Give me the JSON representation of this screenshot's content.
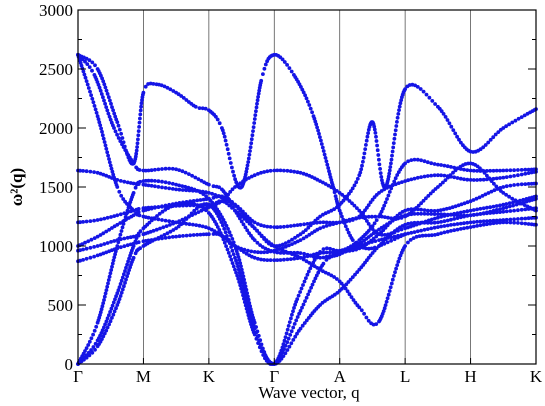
{
  "chart_data": {
    "type": "scatter",
    "ylabel": "ω²(q)",
    "xlabel": "Wave vector, q",
    "ylim": [
      0,
      3000
    ],
    "yticks": [
      0,
      500,
      1000,
      1500,
      2000,
      2500,
      3000
    ],
    "ytick_labels": [
      "0",
      "500",
      "1000",
      "1500",
      "2000",
      "2500",
      "3000"
    ],
    "x_points": [
      "Γ",
      "M",
      "K",
      "Γ",
      "A",
      "L",
      "H",
      "K"
    ],
    "grid_x": true,
    "grid_y": false,
    "series_color": "#1515e6",
    "series": [
      {
        "values": [
          [
            0,
            0
          ],
          [
            0.3,
            150
          ],
          [
            0.6,
            500
          ],
          [
            0.85,
            900
          ],
          [
            1,
            1000
          ],
          [
            1.5,
            1150
          ],
          [
            2,
            1350
          ],
          [
            2.4,
            900
          ],
          [
            2.7,
            300
          ],
          [
            3,
            0
          ],
          [
            3.4,
            300
          ],
          [
            3.7,
            500
          ],
          [
            4,
            620
          ],
          [
            4.3,
            800
          ],
          [
            4.6,
            1000
          ],
          [
            5,
            1180
          ],
          [
            5.5,
            1200
          ],
          [
            6,
            1260
          ],
          [
            6.5,
            1290
          ],
          [
            7,
            1320
          ]
        ]
      },
      {
        "values": [
          [
            0,
            0
          ],
          [
            0.3,
            200
          ],
          [
            0.6,
            600
          ],
          [
            0.85,
            1000
          ],
          [
            1,
            1150
          ],
          [
            1.5,
            1350
          ],
          [
            2,
            1280
          ],
          [
            2.4,
            800
          ],
          [
            2.7,
            250
          ],
          [
            3,
            0
          ],
          [
            3.4,
            450
          ],
          [
            3.75,
            850
          ],
          [
            4,
            930
          ],
          [
            4.3,
            1000
          ],
          [
            4.6,
            1050
          ],
          [
            5,
            1100
          ],
          [
            5.5,
            1160
          ],
          [
            6,
            1200
          ],
          [
            6.5,
            1220
          ],
          [
            7,
            1240
          ]
        ]
      },
      {
        "values": [
          [
            0,
            0
          ],
          [
            0.3,
            350
          ],
          [
            0.6,
            1000
          ],
          [
            0.85,
            1450
          ],
          [
            1,
            1550
          ],
          [
            1.5,
            1520
          ],
          [
            2,
            1400
          ],
          [
            2.4,
            1000
          ],
          [
            2.7,
            350
          ],
          [
            3,
            0
          ],
          [
            3.35,
            550
          ],
          [
            3.7,
            950
          ],
          [
            4,
            960
          ],
          [
            4.3,
            1020
          ],
          [
            4.6,
            1140
          ],
          [
            5,
            1260
          ],
          [
            5.5,
            1270
          ],
          [
            6,
            1260
          ],
          [
            6.5,
            1320
          ],
          [
            7,
            1400
          ]
        ]
      },
      {
        "values": [
          [
            0,
            2620
          ],
          [
            0.25,
            2450
          ],
          [
            0.55,
            2000
          ],
          [
            0.85,
            1700
          ],
          [
            1,
            1640
          ],
          [
            1.5,
            1650
          ],
          [
            2,
            1520
          ],
          [
            2.2,
            1480
          ],
          [
            2.4,
            1300
          ],
          [
            2.7,
            1050
          ],
          [
            3,
            950
          ],
          [
            3.4,
            940
          ],
          [
            3.7,
            900
          ],
          [
            4,
            950
          ],
          [
            4.3,
            1050
          ],
          [
            4.6,
            1250
          ],
          [
            5,
            1700
          ],
          [
            5.5,
            1690
          ],
          [
            6,
            1640
          ],
          [
            6.5,
            1640
          ],
          [
            7,
            1650
          ]
        ]
      },
      {
        "values": [
          [
            0,
            2620
          ],
          [
            0.3,
            2100
          ],
          [
            0.6,
            1500
          ],
          [
            0.85,
            1300
          ],
          [
            1,
            1250
          ],
          [
            1.5,
            1200
          ],
          [
            2,
            1150
          ],
          [
            2.4,
            1000
          ],
          [
            2.7,
            900
          ],
          [
            3,
            880
          ],
          [
            3.4,
            900
          ],
          [
            3.7,
            940
          ],
          [
            4,
            950
          ],
          [
            4.3,
            980
          ],
          [
            4.6,
            1100
          ],
          [
            5,
            1300
          ],
          [
            5.5,
            1300
          ],
          [
            6,
            1380
          ],
          [
            6.5,
            1500
          ],
          [
            7,
            1530
          ]
        ]
      },
      {
        "values": [
          [
            0,
            1640
          ],
          [
            0.3,
            1620
          ],
          [
            0.6,
            1560
          ],
          [
            0.85,
            1530
          ],
          [
            1,
            1520
          ],
          [
            1.5,
            1480
          ],
          [
            2,
            1450
          ],
          [
            2.4,
            1350
          ],
          [
            2.7,
            1200
          ],
          [
            3,
            1160
          ],
          [
            3.4,
            1180
          ],
          [
            3.7,
            1200
          ],
          [
            4,
            1200
          ],
          [
            4.3,
            1250
          ],
          [
            4.6,
            1450
          ],
          [
            5,
            1550
          ],
          [
            5.5,
            1600
          ],
          [
            6,
            1560
          ],
          [
            6.5,
            1580
          ],
          [
            7,
            1630
          ]
        ]
      },
      {
        "values": [
          [
            0,
            1200
          ],
          [
            0.3,
            1220
          ],
          [
            0.6,
            1260
          ],
          [
            0.85,
            1300
          ],
          [
            1,
            1320
          ],
          [
            1.5,
            1340
          ],
          [
            2,
            1350
          ],
          [
            2.2,
            1380
          ],
          [
            2.4,
            1500
          ],
          [
            2.7,
            1600
          ],
          [
            3,
            1640
          ],
          [
            3.4,
            1620
          ],
          [
            3.7,
            1550
          ],
          [
            4,
            1450
          ],
          [
            4.3,
            1300
          ],
          [
            4.6,
            1100
          ],
          [
            5,
            1150
          ],
          [
            5.5,
            1240
          ],
          [
            6,
            1300
          ],
          [
            6.5,
            1350
          ],
          [
            7,
            1420
          ]
        ]
      },
      {
        "values": [
          [
            0,
            1000
          ],
          [
            0.3,
            1080
          ],
          [
            0.6,
            1180
          ],
          [
            0.85,
            1260
          ],
          [
            1,
            1300
          ],
          [
            1.5,
            1360
          ],
          [
            2,
            1400
          ],
          [
            2.2,
            1420
          ],
          [
            2.4,
            1350
          ],
          [
            2.7,
            1150
          ],
          [
            3,
            1000
          ],
          [
            3.4,
            900
          ],
          [
            3.7,
            800
          ],
          [
            4,
            700
          ],
          [
            4.3,
            480
          ],
          [
            4.6,
            360
          ],
          [
            5,
            1000
          ],
          [
            5.5,
            1100
          ],
          [
            6,
            1160
          ],
          [
            6.5,
            1200
          ],
          [
            7,
            1180
          ]
        ]
      },
      {
        "values": [
          [
            0,
            960
          ],
          [
            0.3,
            1000
          ],
          [
            0.6,
            1050
          ],
          [
            0.85,
            1080
          ],
          [
            1,
            1100
          ],
          [
            1.5,
            1200
          ],
          [
            2,
            1330
          ],
          [
            2.2,
            1380
          ],
          [
            2.4,
            1300
          ],
          [
            2.7,
            1150
          ],
          [
            3,
            1000
          ],
          [
            3.4,
            1100
          ],
          [
            3.7,
            1250
          ],
          [
            4,
            1350
          ],
          [
            4.3,
            1600
          ],
          [
            4.5,
            2050
          ],
          [
            4.7,
            1500
          ],
          [
            5,
            2330
          ],
          [
            5.5,
            2180
          ],
          [
            6,
            1800
          ],
          [
            6.5,
            2000
          ],
          [
            7,
            2160
          ]
        ]
      },
      {
        "values": [
          [
            0,
            870
          ],
          [
            0.3,
            920
          ],
          [
            0.6,
            980
          ],
          [
            0.85,
            1020
          ],
          [
            1,
            1040
          ],
          [
            1.5,
            1080
          ],
          [
            2,
            1100
          ],
          [
            2.2,
            1090
          ],
          [
            2.4,
            1000
          ],
          [
            2.7,
            950
          ],
          [
            3,
            960
          ],
          [
            3.4,
            1050
          ],
          [
            3.7,
            1150
          ],
          [
            4,
            1200
          ],
          [
            4.3,
            1240
          ],
          [
            4.6,
            1250
          ],
          [
            5,
            1250
          ],
          [
            5.5,
            1500
          ],
          [
            6,
            1700
          ],
          [
            6.5,
            1450
          ],
          [
            7,
            1300
          ]
        ]
      },
      {
        "values": [
          [
            0,
            2620
          ],
          [
            0.3,
            2500
          ],
          [
            0.6,
            2050
          ],
          [
            0.85,
            1700
          ],
          [
            1,
            2300
          ],
          [
            1.2,
            2370
          ],
          [
            1.5,
            2300
          ],
          [
            1.8,
            2180
          ],
          [
            2,
            2150
          ],
          [
            2.2,
            2000
          ],
          [
            2.5,
            1500
          ],
          [
            2.8,
            2400
          ],
          [
            3,
            2620
          ],
          [
            3.3,
            2450
          ],
          [
            3.6,
            2100
          ],
          [
            3.9,
            1500
          ],
          [
            4,
            1300
          ],
          [
            4.2,
            1050
          ],
          [
            4.4,
            980
          ],
          [
            4.6,
            1000
          ],
          [
            5,
            1100
          ]
        ]
      }
    ]
  }
}
